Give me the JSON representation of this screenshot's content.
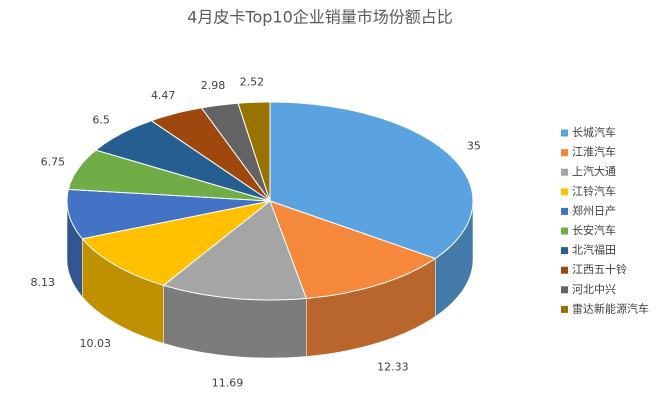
{
  "chart_data": {
    "type": "pie3d",
    "title": "4月皮卡Top10企业销量市场份额占比",
    "legend": "right",
    "series": [
      {
        "name": "销量份额",
        "categories": [
          "长城汽车",
          "江淮汽车",
          "上汽大通",
          "江铃汽车",
          "郑州日产",
          "长安汽车",
          "北汽福田",
          "江西五十铃",
          "河北中兴",
          "雷达新能源汽车"
        ],
        "values": [
          35,
          12.33,
          11.69,
          10.03,
          8.13,
          6.75,
          6.5,
          4.47,
          2.98,
          2.52
        ],
        "colors": [
          "#5ba3e0",
          "#f5883a",
          "#a5a5a5",
          "#ffc000",
          "#4472c4",
          "#70ad47",
          "#255e91",
          "#9e480e",
          "#636363",
          "#997300"
        ]
      }
    ]
  }
}
